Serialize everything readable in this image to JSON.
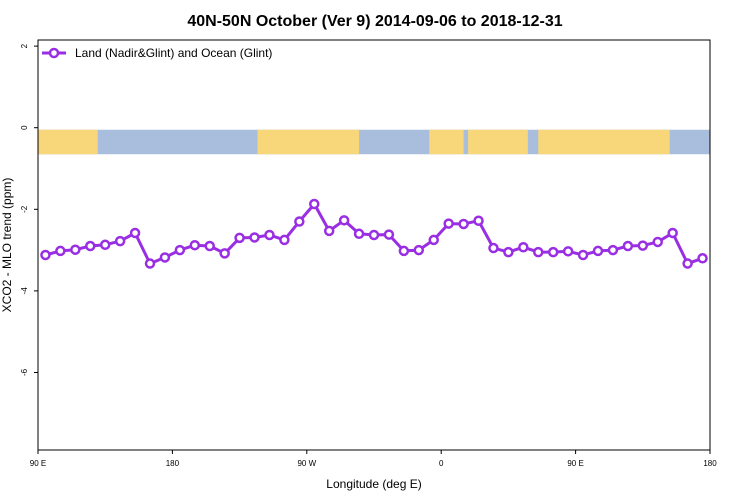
{
  "chart_data": {
    "type": "line",
    "title": "40N-50N October (Ver 9)   2014-09-06 to 2018-12-31",
    "xlabel": "Longitude (deg E)",
    "ylabel": "XCO2 - MLO trend (ppm)",
    "x_ticks": [
      {
        "value": 90,
        "label": "90 E"
      },
      {
        "value": 180,
        "label": "180"
      },
      {
        "value": 270,
        "label": "90 W"
      },
      {
        "value": 360,
        "label": "0"
      },
      {
        "value": 450,
        "label": "90 E"
      },
      {
        "value": 540,
        "label": "180"
      }
    ],
    "y_ticks": [
      {
        "value": 2,
        "label": "2"
      },
      {
        "value": 0,
        "label": "0"
      },
      {
        "value": -2,
        "label": "-2"
      },
      {
        "value": -4,
        "label": "-4"
      },
      {
        "value": -6,
        "label": "-6"
      }
    ],
    "xlim": [
      90,
      540
    ],
    "ylim": [
      -7.9,
      2.15
    ],
    "legend_position": "top-left",
    "map_strip_y_range": [
      -0.65,
      -0.05
    ],
    "map_colors": {
      "land": "#f7d77a",
      "ocean": "#a9bedd"
    },
    "series": [
      {
        "name": "Land (Nadir&Glint) and Ocean (Glint)",
        "color": "#9a2ee2",
        "x": [
          95,
          105,
          115,
          125,
          135,
          145,
          155,
          165,
          175,
          185,
          195,
          205,
          215,
          225,
          235,
          245,
          255,
          265,
          275,
          285,
          295,
          305,
          315,
          325,
          335,
          345,
          355,
          365,
          375,
          385,
          395,
          405,
          415,
          425,
          435,
          445,
          455,
          465,
          475,
          485,
          495,
          505,
          515,
          525,
          535
        ],
        "y": [
          -3.12,
          -3.02,
          -2.99,
          -2.9,
          -2.87,
          -2.78,
          -2.58,
          -3.33,
          -3.18,
          -3.0,
          -2.88,
          -2.9,
          -3.08,
          -2.7,
          -2.69,
          -2.63,
          -2.75,
          -2.3,
          -1.87,
          -2.53,
          -2.27,
          -2.6,
          -2.63,
          -2.62,
          -3.02,
          -3.0,
          -2.75,
          -2.35,
          -2.36,
          -2.28,
          -2.95,
          -3.05,
          -2.93,
          -3.05,
          -3.05,
          -3.03,
          -3.12,
          -3.02,
          -3.0,
          -2.9,
          -2.89,
          -2.8,
          -2.58,
          -3.33,
          -3.2
        ]
      }
    ]
  }
}
